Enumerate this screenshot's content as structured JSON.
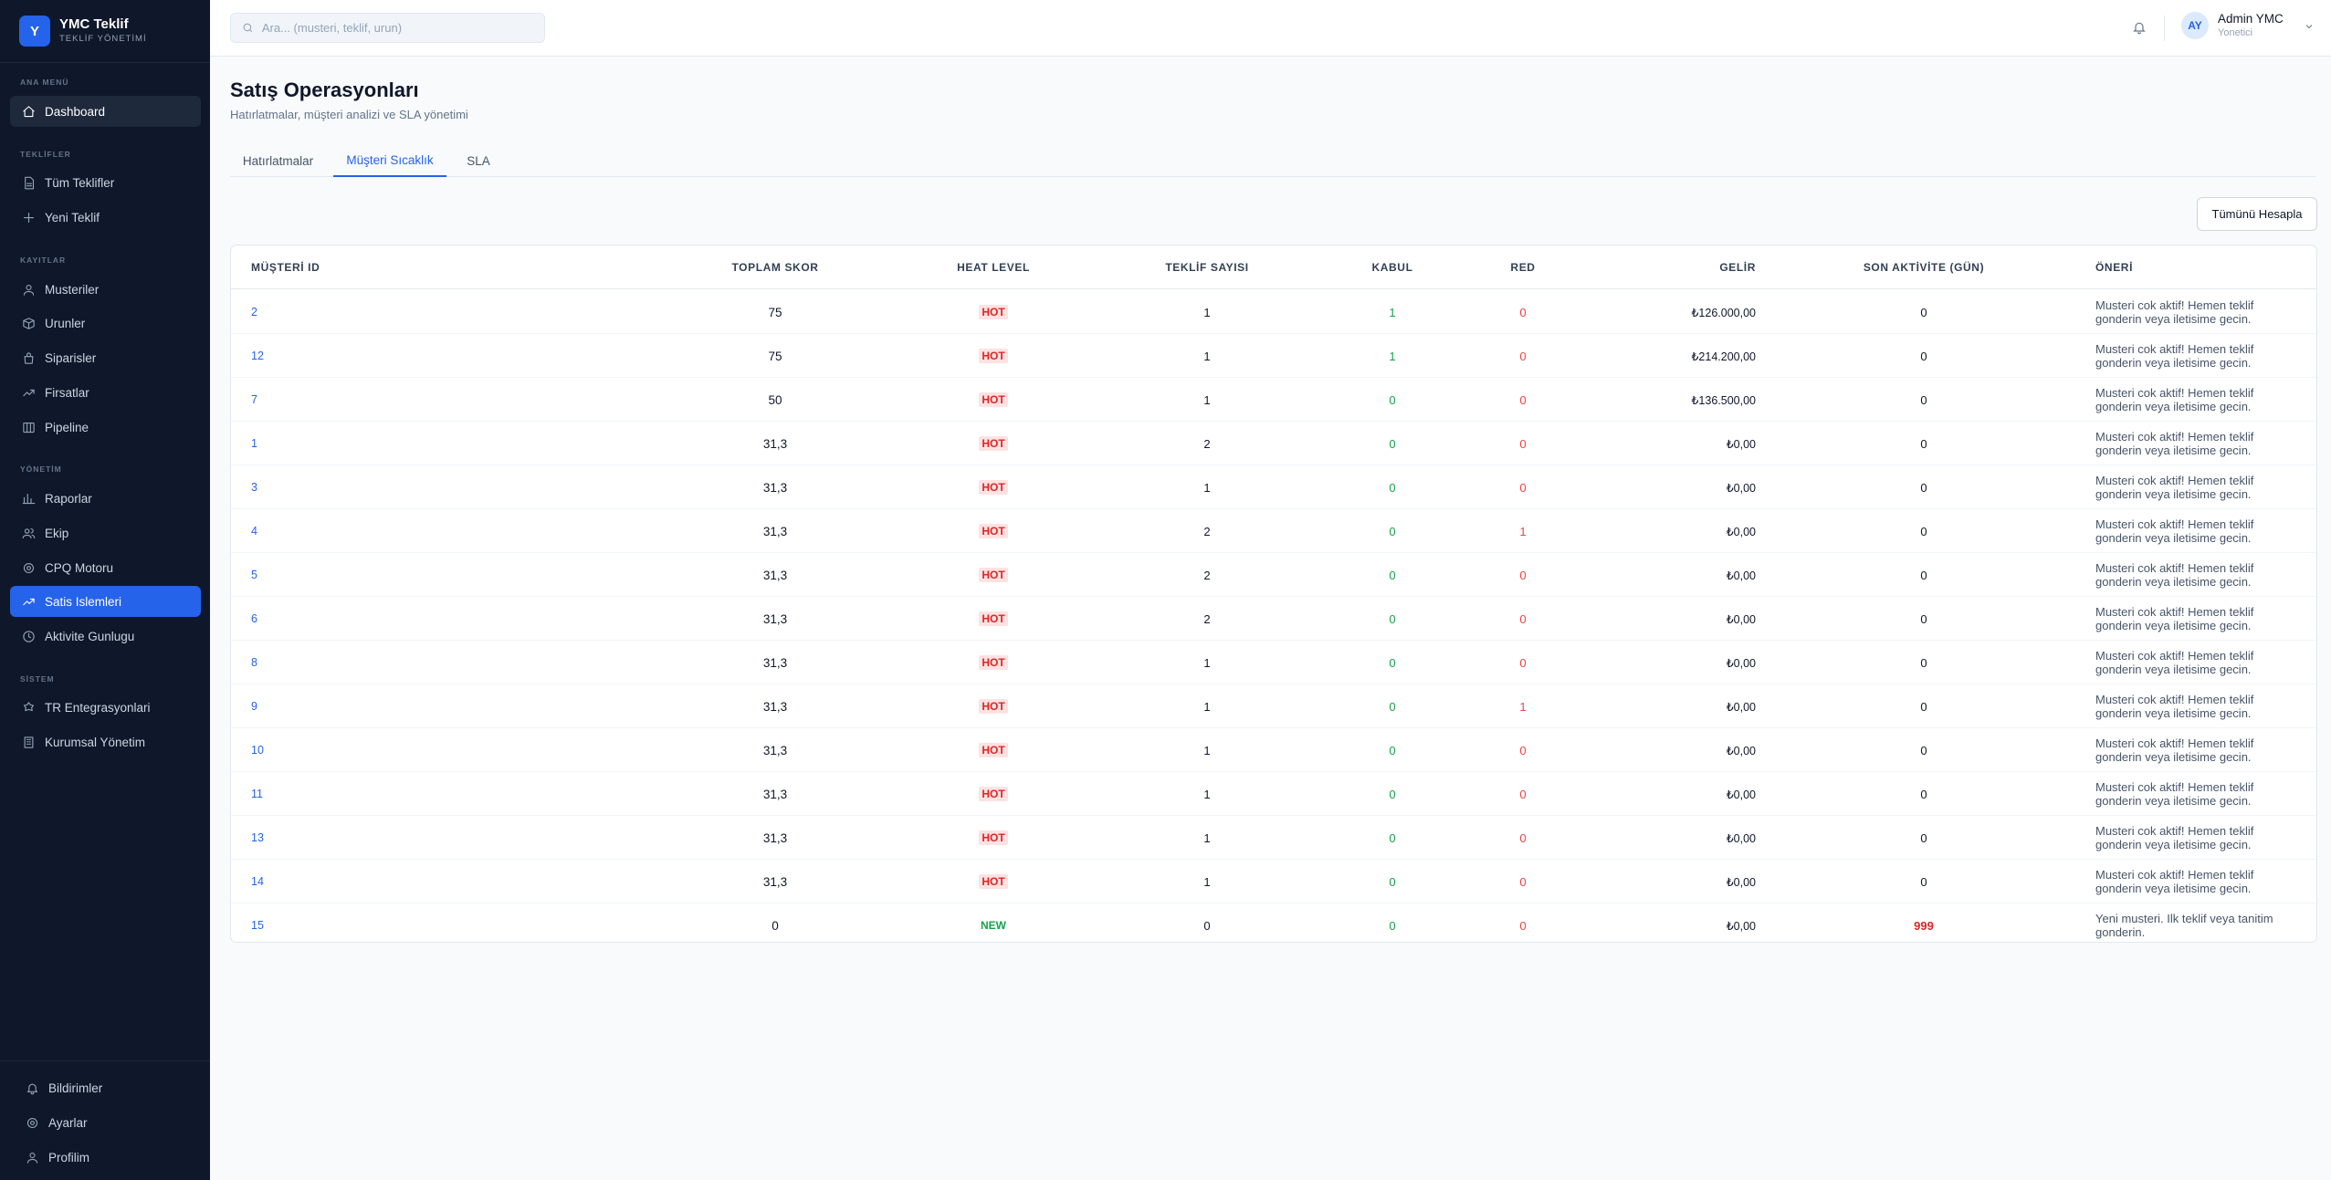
{
  "app": {
    "logo_letter": "Y",
    "title": "YMC Teklif",
    "subtitle": "TEKLİF YÖNETİMİ"
  },
  "sidebar": {
    "sections": {
      "main": "ANA MENÜ",
      "offers": "TEKLİFLER",
      "records": "KAYITLAR",
      "management": "YÖNETİM",
      "system": "SİSTEM"
    },
    "items": [
      {
        "label": "Dashboard",
        "icon": "home-icon"
      },
      {
        "label": "Tüm Teklifler",
        "icon": "file-icon"
      },
      {
        "label": "Yeni Teklif",
        "icon": "plus-icon"
      },
      {
        "label": "Musteriler",
        "icon": "users-icon"
      },
      {
        "label": "Urunler",
        "icon": "box-icon"
      },
      {
        "label": "Siparisler",
        "icon": "bag-icon"
      },
      {
        "label": "Firsatlar",
        "icon": "trending-icon"
      },
      {
        "label": "Pipeline",
        "icon": "columns-icon"
      },
      {
        "label": "Raporlar",
        "icon": "bar-chart-icon"
      },
      {
        "label": "Ekip",
        "icon": "team-icon"
      },
      {
        "label": "CPQ Motoru",
        "icon": "gear-icon"
      },
      {
        "label": "Satis Islemleri",
        "icon": "trending-icon"
      },
      {
        "label": "Aktivite Gunlugu",
        "icon": "clock-icon"
      },
      {
        "label": "TR Entegrasyonlari",
        "icon": "globe-icon"
      },
      {
        "label": "Kurumsal Yönetim",
        "icon": "building-icon"
      }
    ],
    "bottom": [
      {
        "label": "Bildirimler",
        "icon": "bell-icon"
      },
      {
        "label": "Ayarlar",
        "icon": "gear-icon"
      },
      {
        "label": "Profilim",
        "icon": "user-icon"
      }
    ]
  },
  "header": {
    "search_placeholder": "Ara... (musteri, teklif, urun)",
    "user_initials": "AY",
    "user_name": "Admin YMC",
    "user_role": "Yonetici"
  },
  "page": {
    "title": "Satış Operasyonları",
    "subtitle": "Hatırlatmalar, müşteri analizi ve SLA yönetimi",
    "tabs": [
      "Hatırlatmalar",
      "Müşteri Sıcaklık",
      "SLA"
    ],
    "active_tab": "Müşteri Sıcaklık",
    "calc_button": "Tümünü Hesapla"
  },
  "table": {
    "columns": [
      "MÜŞTERİ ID",
      "TOPLAM SKOR",
      "HEAT LEVEL",
      "TEKLİF SAYISI",
      "KABUL",
      "RED",
      "GELİR",
      "SON AKTİVİTE (GÜN)",
      "ÖNERİ"
    ],
    "rows": [
      {
        "id": "2",
        "score": "75",
        "heat": "HOT",
        "count": "1",
        "accept": "1",
        "reject": "0",
        "revenue": "₺126.000,00",
        "activity": "0",
        "suggestion": "Musteri cok aktif! Hemen teklif gonderin veya iletisime gecin."
      },
      {
        "id": "12",
        "score": "75",
        "heat": "HOT",
        "count": "1",
        "accept": "1",
        "reject": "0",
        "revenue": "₺214.200,00",
        "activity": "0",
        "suggestion": "Musteri cok aktif! Hemen teklif gonderin veya iletisime gecin."
      },
      {
        "id": "7",
        "score": "50",
        "heat": "HOT",
        "count": "1",
        "accept": "0",
        "reject": "0",
        "revenue": "₺136.500,00",
        "activity": "0",
        "suggestion": "Musteri cok aktif! Hemen teklif gonderin veya iletisime gecin."
      },
      {
        "id": "1",
        "score": "31,3",
        "heat": "HOT",
        "count": "2",
        "accept": "0",
        "reject": "0",
        "revenue": "₺0,00",
        "activity": "0",
        "suggestion": "Musteri cok aktif! Hemen teklif gonderin veya iletisime gecin."
      },
      {
        "id": "3",
        "score": "31,3",
        "heat": "HOT",
        "count": "1",
        "accept": "0",
        "reject": "0",
        "revenue": "₺0,00",
        "activity": "0",
        "suggestion": "Musteri cok aktif! Hemen teklif gonderin veya iletisime gecin."
      },
      {
        "id": "4",
        "score": "31,3",
        "heat": "HOT",
        "count": "2",
        "accept": "0",
        "reject": "1",
        "revenue": "₺0,00",
        "activity": "0",
        "suggestion": "Musteri cok aktif! Hemen teklif gonderin veya iletisime gecin."
      },
      {
        "id": "5",
        "score": "31,3",
        "heat": "HOT",
        "count": "2",
        "accept": "0",
        "reject": "0",
        "revenue": "₺0,00",
        "activity": "0",
        "suggestion": "Musteri cok aktif! Hemen teklif gonderin veya iletisime gecin."
      },
      {
        "id": "6",
        "score": "31,3",
        "heat": "HOT",
        "count": "2",
        "accept": "0",
        "reject": "0",
        "revenue": "₺0,00",
        "activity": "0",
        "suggestion": "Musteri cok aktif! Hemen teklif gonderin veya iletisime gecin."
      },
      {
        "id": "8",
        "score": "31,3",
        "heat": "HOT",
        "count": "1",
        "accept": "0",
        "reject": "0",
        "revenue": "₺0,00",
        "activity": "0",
        "suggestion": "Musteri cok aktif! Hemen teklif gonderin veya iletisime gecin."
      },
      {
        "id": "9",
        "score": "31,3",
        "heat": "HOT",
        "count": "1",
        "accept": "0",
        "reject": "1",
        "revenue": "₺0,00",
        "activity": "0",
        "suggestion": "Musteri cok aktif! Hemen teklif gonderin veya iletisime gecin."
      },
      {
        "id": "10",
        "score": "31,3",
        "heat": "HOT",
        "count": "1",
        "accept": "0",
        "reject": "0",
        "revenue": "₺0,00",
        "activity": "0",
        "suggestion": "Musteri cok aktif! Hemen teklif gonderin veya iletisime gecin."
      },
      {
        "id": "11",
        "score": "31,3",
        "heat": "HOT",
        "count": "1",
        "accept": "0",
        "reject": "0",
        "revenue": "₺0,00",
        "activity": "0",
        "suggestion": "Musteri cok aktif! Hemen teklif gonderin veya iletisime gecin."
      },
      {
        "id": "13",
        "score": "31,3",
        "heat": "HOT",
        "count": "1",
        "accept": "0",
        "reject": "0",
        "revenue": "₺0,00",
        "activity": "0",
        "suggestion": "Musteri cok aktif! Hemen teklif gonderin veya iletisime gecin."
      },
      {
        "id": "14",
        "score": "31,3",
        "heat": "HOT",
        "count": "1",
        "accept": "0",
        "reject": "0",
        "revenue": "₺0,00",
        "activity": "0",
        "suggestion": "Musteri cok aktif! Hemen teklif gonderin veya iletisime gecin."
      },
      {
        "id": "15",
        "score": "0",
        "heat": "NEW",
        "count": "0",
        "accept": "0",
        "reject": "0",
        "revenue": "₺0,00",
        "activity": "999",
        "suggestion": "Yeni musteri. Ilk teklif veya tanitim gonderin."
      }
    ]
  },
  "colors": {
    "sidebar_bg": "#0f172a",
    "accent": "#2563eb",
    "hot": "#dc2626",
    "new": "#16a34a"
  }
}
